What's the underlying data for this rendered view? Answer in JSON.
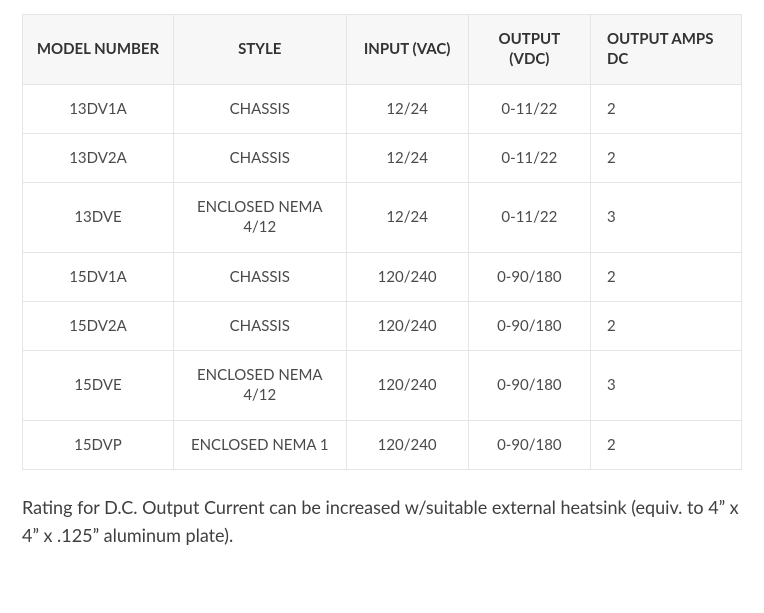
{
  "table": {
    "columns": [
      {
        "label": "MODEL NUMBER",
        "align": "center"
      },
      {
        "label": "STYLE",
        "align": "center"
      },
      {
        "label": "INPUT (VAC)",
        "align": "center"
      },
      {
        "label": "OUTPUT (VDC)",
        "align": "center"
      },
      {
        "label": "OUTPUT AMPS DC",
        "align": "left"
      }
    ],
    "rows": [
      [
        "13DV1A",
        "CHASSIS",
        "12/24",
        "0-11/22",
        "2"
      ],
      [
        "13DV2A",
        "CHASSIS",
        "12/24",
        "0-11/22",
        "2"
      ],
      [
        "13DVE",
        "ENCLOSED NEMA 4/12",
        "12/24",
        "0-11/22",
        "3"
      ],
      [
        "15DV1A",
        "CHASSIS",
        "120/240",
        "0-90/180",
        "2"
      ],
      [
        "15DV2A",
        "CHASSIS",
        "120/240",
        "0-90/180",
        "2"
      ],
      [
        "15DVE",
        "ENCLOSED NEMA 4/12",
        "120/240",
        "0-90/180",
        "3"
      ],
      [
        "15DVP",
        "ENCLOSED NEMA 1",
        "120/240",
        "0-90/180",
        "2"
      ]
    ],
    "header_bg": "#f7f7f7",
    "border_color": "#e5e5e5",
    "text_color": "#4a4a4a"
  },
  "note": "Rating for D.C. Output Current can be increased w/suitable external heatsink (equiv. to 4” x 4” x .125” aluminum plate)."
}
